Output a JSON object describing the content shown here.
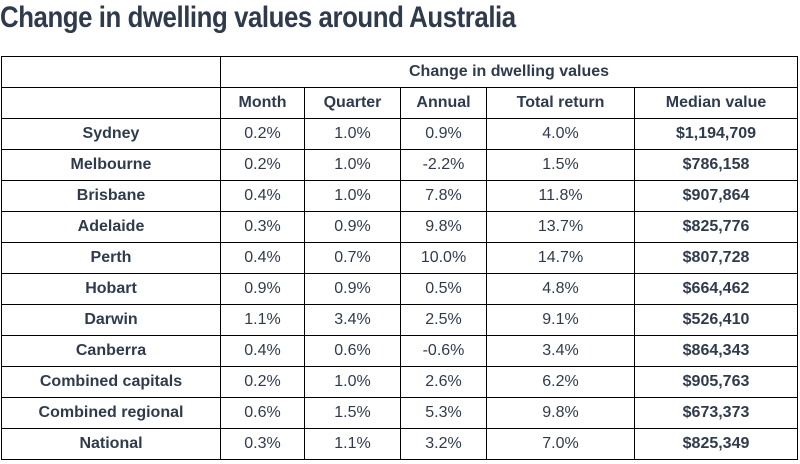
{
  "title": "Change in dwelling values around Australia",
  "table": {
    "group_header": "Change in dwelling values",
    "columns": [
      "Month",
      "Quarter",
      "Annual",
      "Total return",
      "Median value"
    ],
    "rows": [
      {
        "region": "Sydney",
        "values": [
          "0.2%",
          "1.0%",
          "0.9%",
          "4.0%",
          "$1,194,709"
        ]
      },
      {
        "region": "Melbourne",
        "values": [
          "0.2%",
          "1.0%",
          "-2.2%",
          "1.5%",
          "$786,158"
        ]
      },
      {
        "region": "Brisbane",
        "values": [
          "0.4%",
          "1.0%",
          "7.8%",
          "11.8%",
          "$907,864"
        ]
      },
      {
        "region": "Adelaide",
        "values": [
          "0.3%",
          "0.9%",
          "9.8%",
          "13.7%",
          "$825,776"
        ]
      },
      {
        "region": "Perth",
        "values": [
          "0.4%",
          "0.7%",
          "10.0%",
          "14.7%",
          "$807,728"
        ]
      },
      {
        "region": "Hobart",
        "values": [
          "0.9%",
          "0.9%",
          "0.5%",
          "4.8%",
          "$664,462"
        ]
      },
      {
        "region": "Darwin",
        "values": [
          "1.1%",
          "3.4%",
          "2.5%",
          "9.1%",
          "$526,410"
        ]
      },
      {
        "region": "Canberra",
        "values": [
          "0.4%",
          "0.6%",
          "-0.6%",
          "3.4%",
          "$864,343"
        ]
      },
      {
        "region": "Combined capitals",
        "values": [
          "0.2%",
          "1.0%",
          "2.6%",
          "6.2%",
          "$905,763"
        ]
      },
      {
        "region": "Combined regional",
        "values": [
          "0.6%",
          "1.5%",
          "5.3%",
          "9.8%",
          "$673,373"
        ]
      },
      {
        "region": "National",
        "values": [
          "0.3%",
          "1.1%",
          "3.2%",
          "7.0%",
          "$825,349"
        ]
      }
    ]
  }
}
